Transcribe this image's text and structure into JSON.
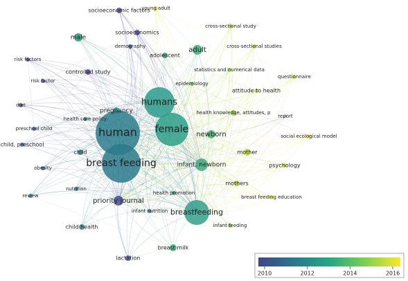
{
  "nodes": [
    {
      "label": "socioeconomic factors"
    },
    {
      "label": "young adult"
    },
    {
      "label": "cross-sectional study"
    },
    {
      "label": "male"
    },
    {
      "label": "socioeconomics"
    },
    {
      "label": "demography"
    },
    {
      "label": "adult"
    },
    {
      "label": "cross-sectional studies"
    },
    {
      "label": "adolescent"
    },
    {
      "label": "risk factors"
    },
    {
      "label": "controlled study"
    },
    {
      "label": "statistics and numerical data"
    },
    {
      "label": "questionnaire"
    },
    {
      "label": "risk factor"
    },
    {
      "label": "epidemiology"
    },
    {
      "label": "attitude to health"
    },
    {
      "label": "humans"
    },
    {
      "label": "diet"
    },
    {
      "label": "pregnancy"
    },
    {
      "label": "health knowledge, attitudes, p"
    },
    {
      "label": "report"
    },
    {
      "label": "health care policy"
    },
    {
      "label": "preschool child"
    },
    {
      "label": "human"
    },
    {
      "label": "female"
    },
    {
      "label": "newborn"
    },
    {
      "label": "social ecological model"
    },
    {
      "label": "child, preschool"
    },
    {
      "label": "child"
    },
    {
      "label": "mother"
    },
    {
      "label": "breast feeding"
    },
    {
      "label": "infant, newborn"
    },
    {
      "label": "psychology"
    },
    {
      "label": "obesity"
    },
    {
      "label": "mothers"
    },
    {
      "label": "nutrition"
    },
    {
      "label": "health promotion"
    },
    {
      "label": "review"
    },
    {
      "label": "priority journal"
    },
    {
      "label": "breast feeding education"
    },
    {
      "label": "infant nutrition"
    },
    {
      "label": "breastfeeding"
    },
    {
      "label": "infant feeding"
    },
    {
      "label": "child health"
    },
    {
      "label": "breast milk"
    },
    {
      "label": "lactation"
    }
  ],
  "legend": {
    "ticks": [
      2010,
      2012,
      2014,
      2016
    ]
  }
}
